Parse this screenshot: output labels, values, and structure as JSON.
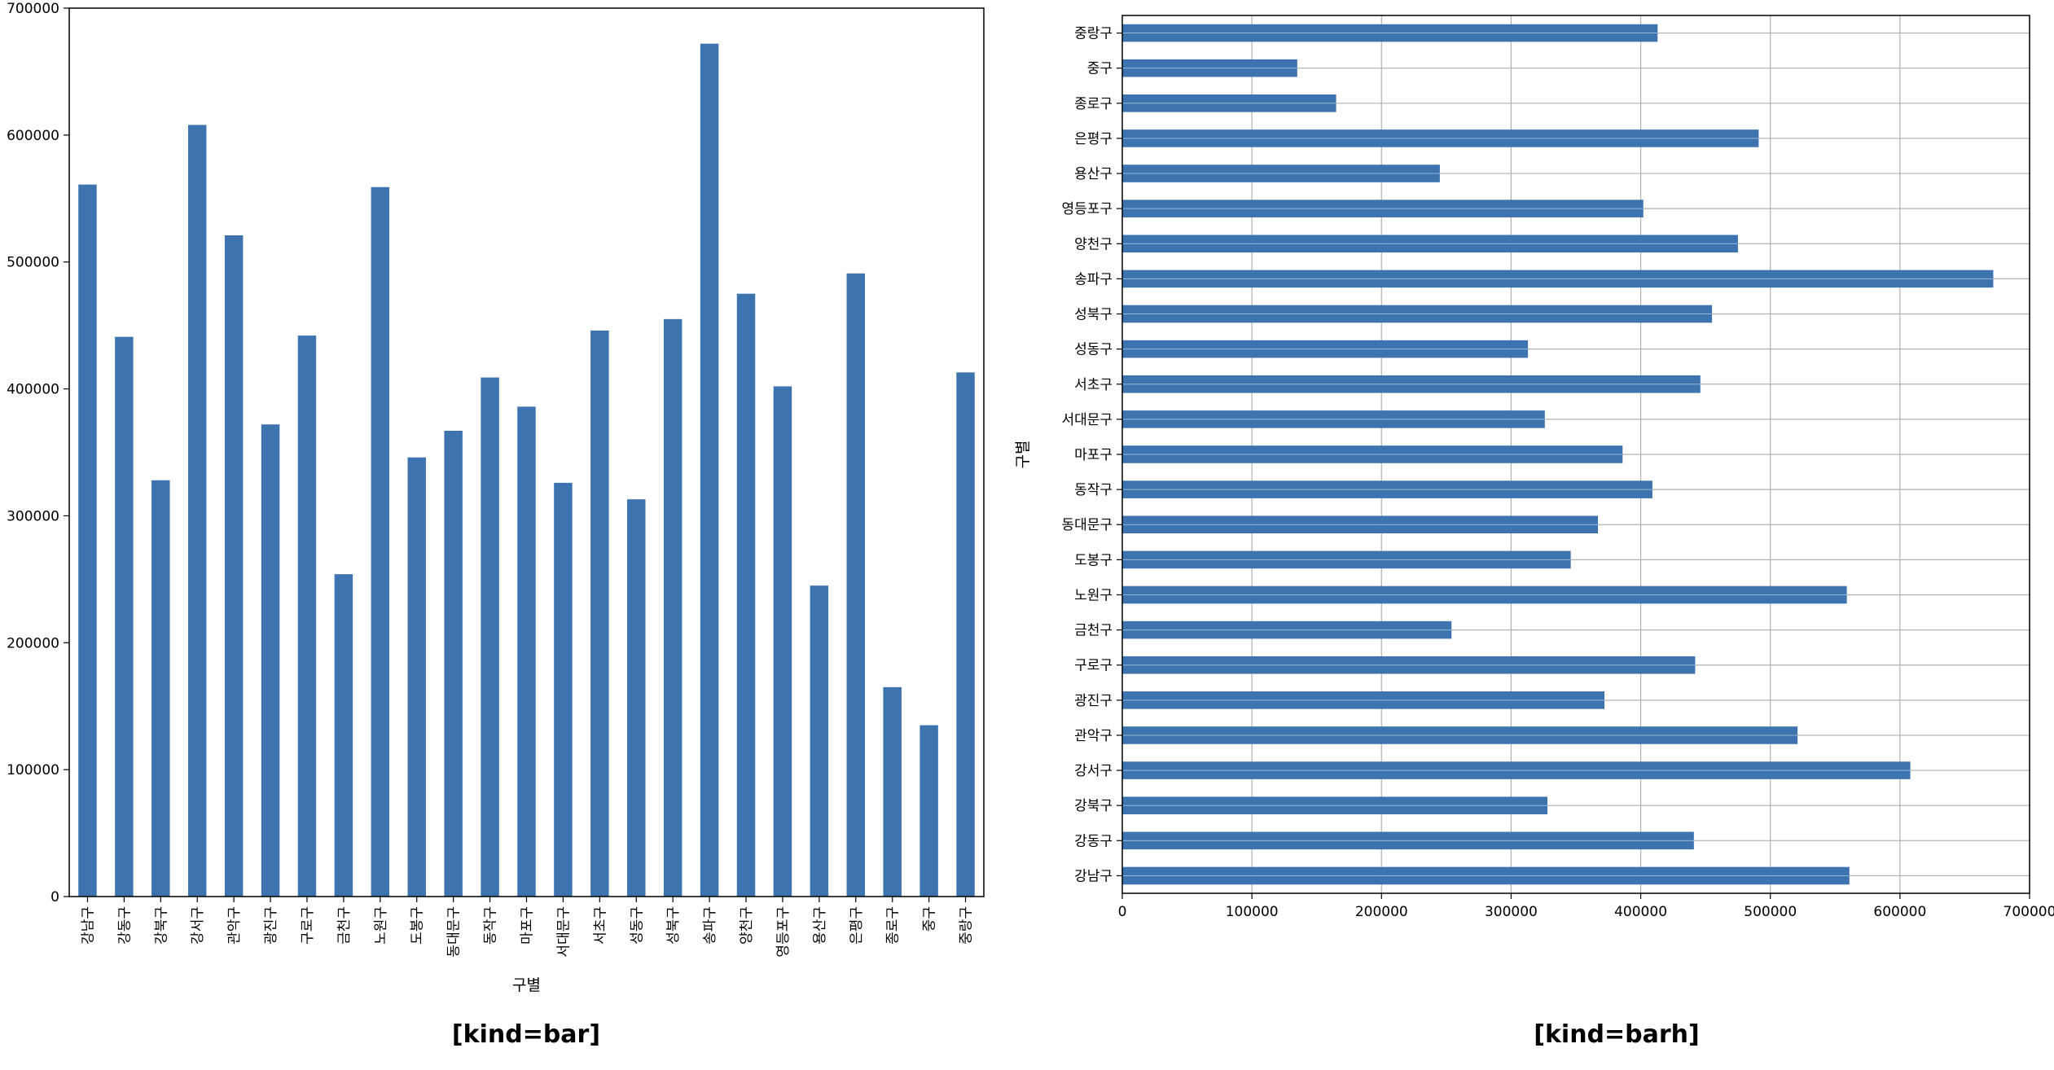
{
  "bar_color": "#3d73ae",
  "grid_color": "#b0b0b0",
  "chart_data": [
    {
      "type": "bar",
      "caption": "[kind=bar]",
      "xlabel": "구별",
      "ylabel": "",
      "ylim": [
        0,
        700000
      ],
      "yticks": [
        "0",
        "100000",
        "200000",
        "300000",
        "400000",
        "500000",
        "600000",
        "700000"
      ],
      "grid": false,
      "categories": [
        "강남구",
        "강동구",
        "강북구",
        "강서구",
        "관악구",
        "광진구",
        "구로구",
        "금천구",
        "노원구",
        "도봉구",
        "동대문구",
        "동작구",
        "마포구",
        "서대문구",
        "서초구",
        "성동구",
        "성북구",
        "송파구",
        "양천구",
        "영등포구",
        "용산구",
        "은평구",
        "종로구",
        "중구",
        "중랑구"
      ],
      "values": [
        561000,
        441000,
        328000,
        608000,
        521000,
        372000,
        442000,
        254000,
        559000,
        346000,
        367000,
        409000,
        386000,
        326000,
        446000,
        313000,
        455000,
        672000,
        475000,
        402000,
        245000,
        491000,
        165000,
        135000,
        413000
      ]
    },
    {
      "type": "barh",
      "caption": "[kind=barh]",
      "xlabel": "",
      "ylabel": "구별",
      "xlim": [
        0,
        700000
      ],
      "xticks": [
        "0",
        "100000",
        "200000",
        "300000",
        "400000",
        "500000",
        "600000",
        "700000"
      ],
      "grid": true,
      "categories": [
        "강남구",
        "강동구",
        "강북구",
        "강서구",
        "관악구",
        "광진구",
        "구로구",
        "금천구",
        "노원구",
        "도봉구",
        "동대문구",
        "동작구",
        "마포구",
        "서대문구",
        "서초구",
        "성동구",
        "성북구",
        "송파구",
        "양천구",
        "영등포구",
        "용산구",
        "은평구",
        "종로구",
        "중구",
        "중랑구"
      ],
      "values": [
        561000,
        441000,
        328000,
        608000,
        521000,
        372000,
        442000,
        254000,
        559000,
        346000,
        367000,
        409000,
        386000,
        326000,
        446000,
        313000,
        455000,
        672000,
        475000,
        402000,
        245000,
        491000,
        165000,
        135000,
        413000
      ]
    }
  ]
}
